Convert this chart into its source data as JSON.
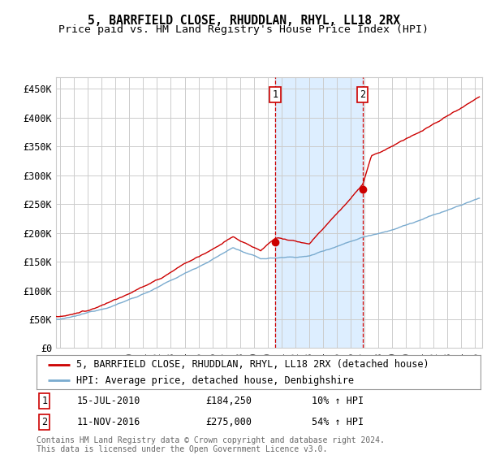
{
  "title": "5, BARRFIELD CLOSE, RHUDDLAN, RHYL, LL18 2RX",
  "subtitle": "Price paid vs. HM Land Registry's House Price Index (HPI)",
  "ylabel_ticks": [
    "£0",
    "£50K",
    "£100K",
    "£150K",
    "£200K",
    "£250K",
    "£300K",
    "£350K",
    "£400K",
    "£450K"
  ],
  "ytick_values": [
    0,
    50000,
    100000,
    150000,
    200000,
    250000,
    300000,
    350000,
    400000,
    450000
  ],
  "ylim": [
    0,
    470000
  ],
  "xlim_start": 1994.7,
  "xlim_end": 2025.5,
  "transaction1_date": 2010.54,
  "transaction1_price": 184250,
  "transaction1_label": "1",
  "transaction1_text": "15-JUL-2010",
  "transaction1_price_text": "£184,250",
  "transaction1_hpi_text": "10% ↑ HPI",
  "transaction2_date": 2016.87,
  "transaction2_price": 275000,
  "transaction2_label": "2",
  "transaction2_text": "11-NOV-2016",
  "transaction2_price_text": "£275,000",
  "transaction2_hpi_text": "54% ↑ HPI",
  "red_line_color": "#cc0000",
  "blue_line_color": "#7aabcf",
  "background_color": "#ffffff",
  "grid_color": "#cccccc",
  "shade_color": "#ddeeff",
  "legend_label_red": "5, BARRFIELD CLOSE, RHUDDLAN, RHYL, LL18 2RX (detached house)",
  "legend_label_blue": "HPI: Average price, detached house, Denbighshire",
  "footer_text": "Contains HM Land Registry data © Crown copyright and database right 2024.\nThis data is licensed under the Open Government Licence v3.0.",
  "title_fontsize": 10.5,
  "subtitle_fontsize": 9.5,
  "tick_fontsize": 8.5,
  "legend_fontsize": 8.5,
  "footer_fontsize": 7.0
}
